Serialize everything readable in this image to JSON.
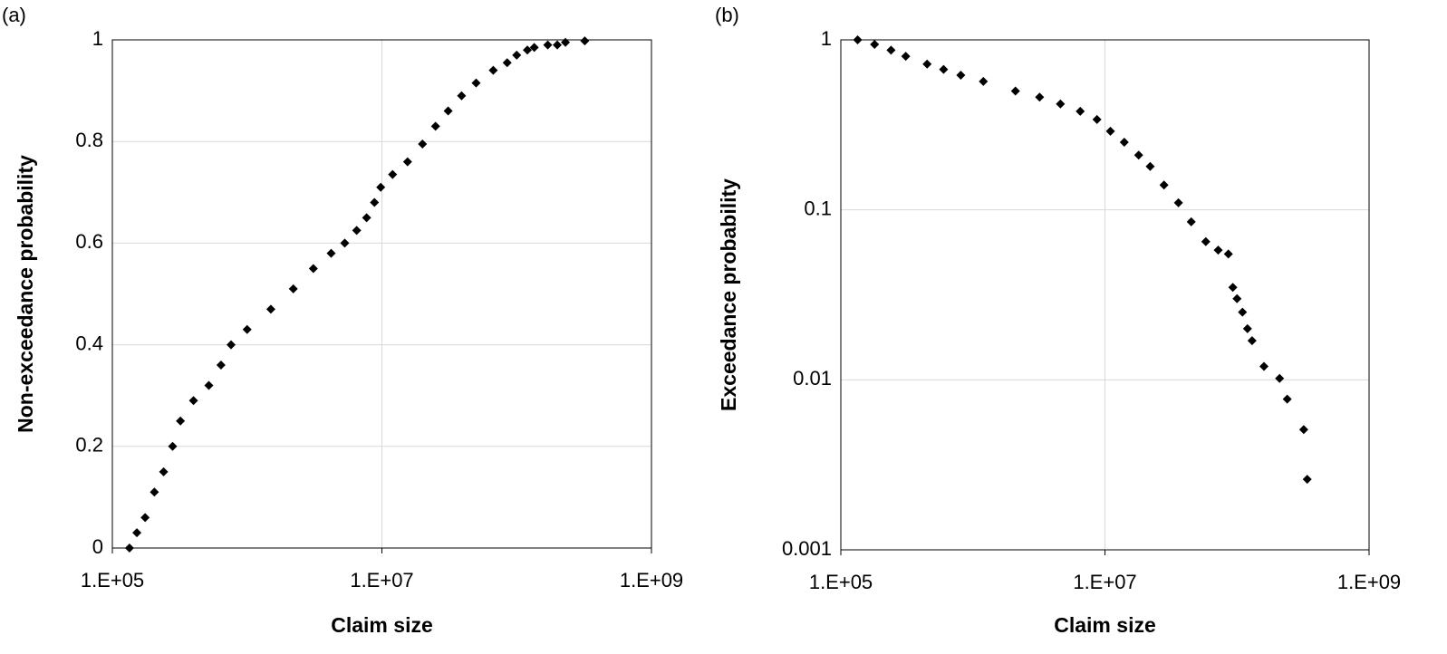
{
  "chart_data": [
    {
      "type": "scatter",
      "panel_label": "(a)",
      "xlabel": "Claim size",
      "ylabel": "Non-exceedance probability",
      "log_x": true,
      "log_y": false,
      "grid": true,
      "color": "#000000",
      "x": [
        134000,
        152000,
        175000,
        205000,
        240000,
        280000,
        320000,
        400000,
        520000,
        640000,
        760000,
        1000000,
        1500000,
        2200000,
        3100000,
        4200000,
        5300000,
        6500000,
        7700000,
        8800000,
        9800000,
        12000000,
        15500000,
        20000000,
        25000000,
        31000000,
        39000000,
        50000000,
        67000000,
        85000000,
        100000000,
        120000000,
        135000000,
        170000000,
        200000000,
        230000000,
        320000000
      ],
      "values": [
        0.0,
        0.03,
        0.06,
        0.11,
        0.15,
        0.2,
        0.25,
        0.29,
        0.32,
        0.36,
        0.4,
        0.43,
        0.47,
        0.51,
        0.55,
        0.58,
        0.6,
        0.625,
        0.65,
        0.68,
        0.71,
        0.735,
        0.76,
        0.795,
        0.83,
        0.86,
        0.89,
        0.915,
        0.94,
        0.955,
        0.97,
        0.98,
        0.985,
        0.99,
        0.99,
        0.995,
        0.998
      ],
      "xlim": [
        100000,
        1000000000
      ],
      "ylim": [
        0,
        1
      ],
      "xticks": [
        {
          "value": 100000,
          "label": "1.E+05"
        },
        {
          "value": 10000000,
          "label": "1.E+07"
        },
        {
          "value": 1000000000,
          "label": "1.E+09"
        }
      ],
      "yticks": [
        0,
        0.2,
        0.4,
        0.6,
        0.8,
        1
      ]
    },
    {
      "type": "scatter",
      "panel_label": "(b)",
      "xlabel": "Claim size",
      "ylabel": "Exceedance probability",
      "log_x": true,
      "log_y": true,
      "grid": true,
      "color": "#000000",
      "x": [
        134000,
        180000,
        240000,
        310000,
        450000,
        600000,
        810000,
        1200000,
        2100000,
        3200000,
        4600000,
        6500000,
        8700000,
        11000000,
        14000000,
        18000000,
        22000000,
        28000000,
        36000000,
        45000000,
        58000000,
        72000000,
        86000000,
        93000000,
        100000000,
        110000000,
        120000000,
        130000000,
        160000000,
        210000000,
        240000000,
        320000000,
        340000000
      ],
      "values": [
        1.0,
        0.94,
        0.87,
        0.8,
        0.72,
        0.67,
        0.62,
        0.57,
        0.5,
        0.46,
        0.42,
        0.38,
        0.34,
        0.29,
        0.25,
        0.21,
        0.18,
        0.14,
        0.11,
        0.085,
        0.065,
        0.058,
        0.055,
        0.035,
        0.03,
        0.025,
        0.02,
        0.017,
        0.012,
        0.0102,
        0.0077,
        0.0051,
        0.0026
      ],
      "xlim": [
        100000,
        1000000000
      ],
      "ylim": [
        0.001,
        1
      ],
      "xticks": [
        {
          "value": 100000,
          "label": "1.E+05"
        },
        {
          "value": 10000000,
          "label": "1.E+07"
        },
        {
          "value": 1000000000,
          "label": "1.E+09"
        }
      ],
      "yticks": [
        0.001,
        0.01,
        0.1,
        1
      ]
    }
  ]
}
